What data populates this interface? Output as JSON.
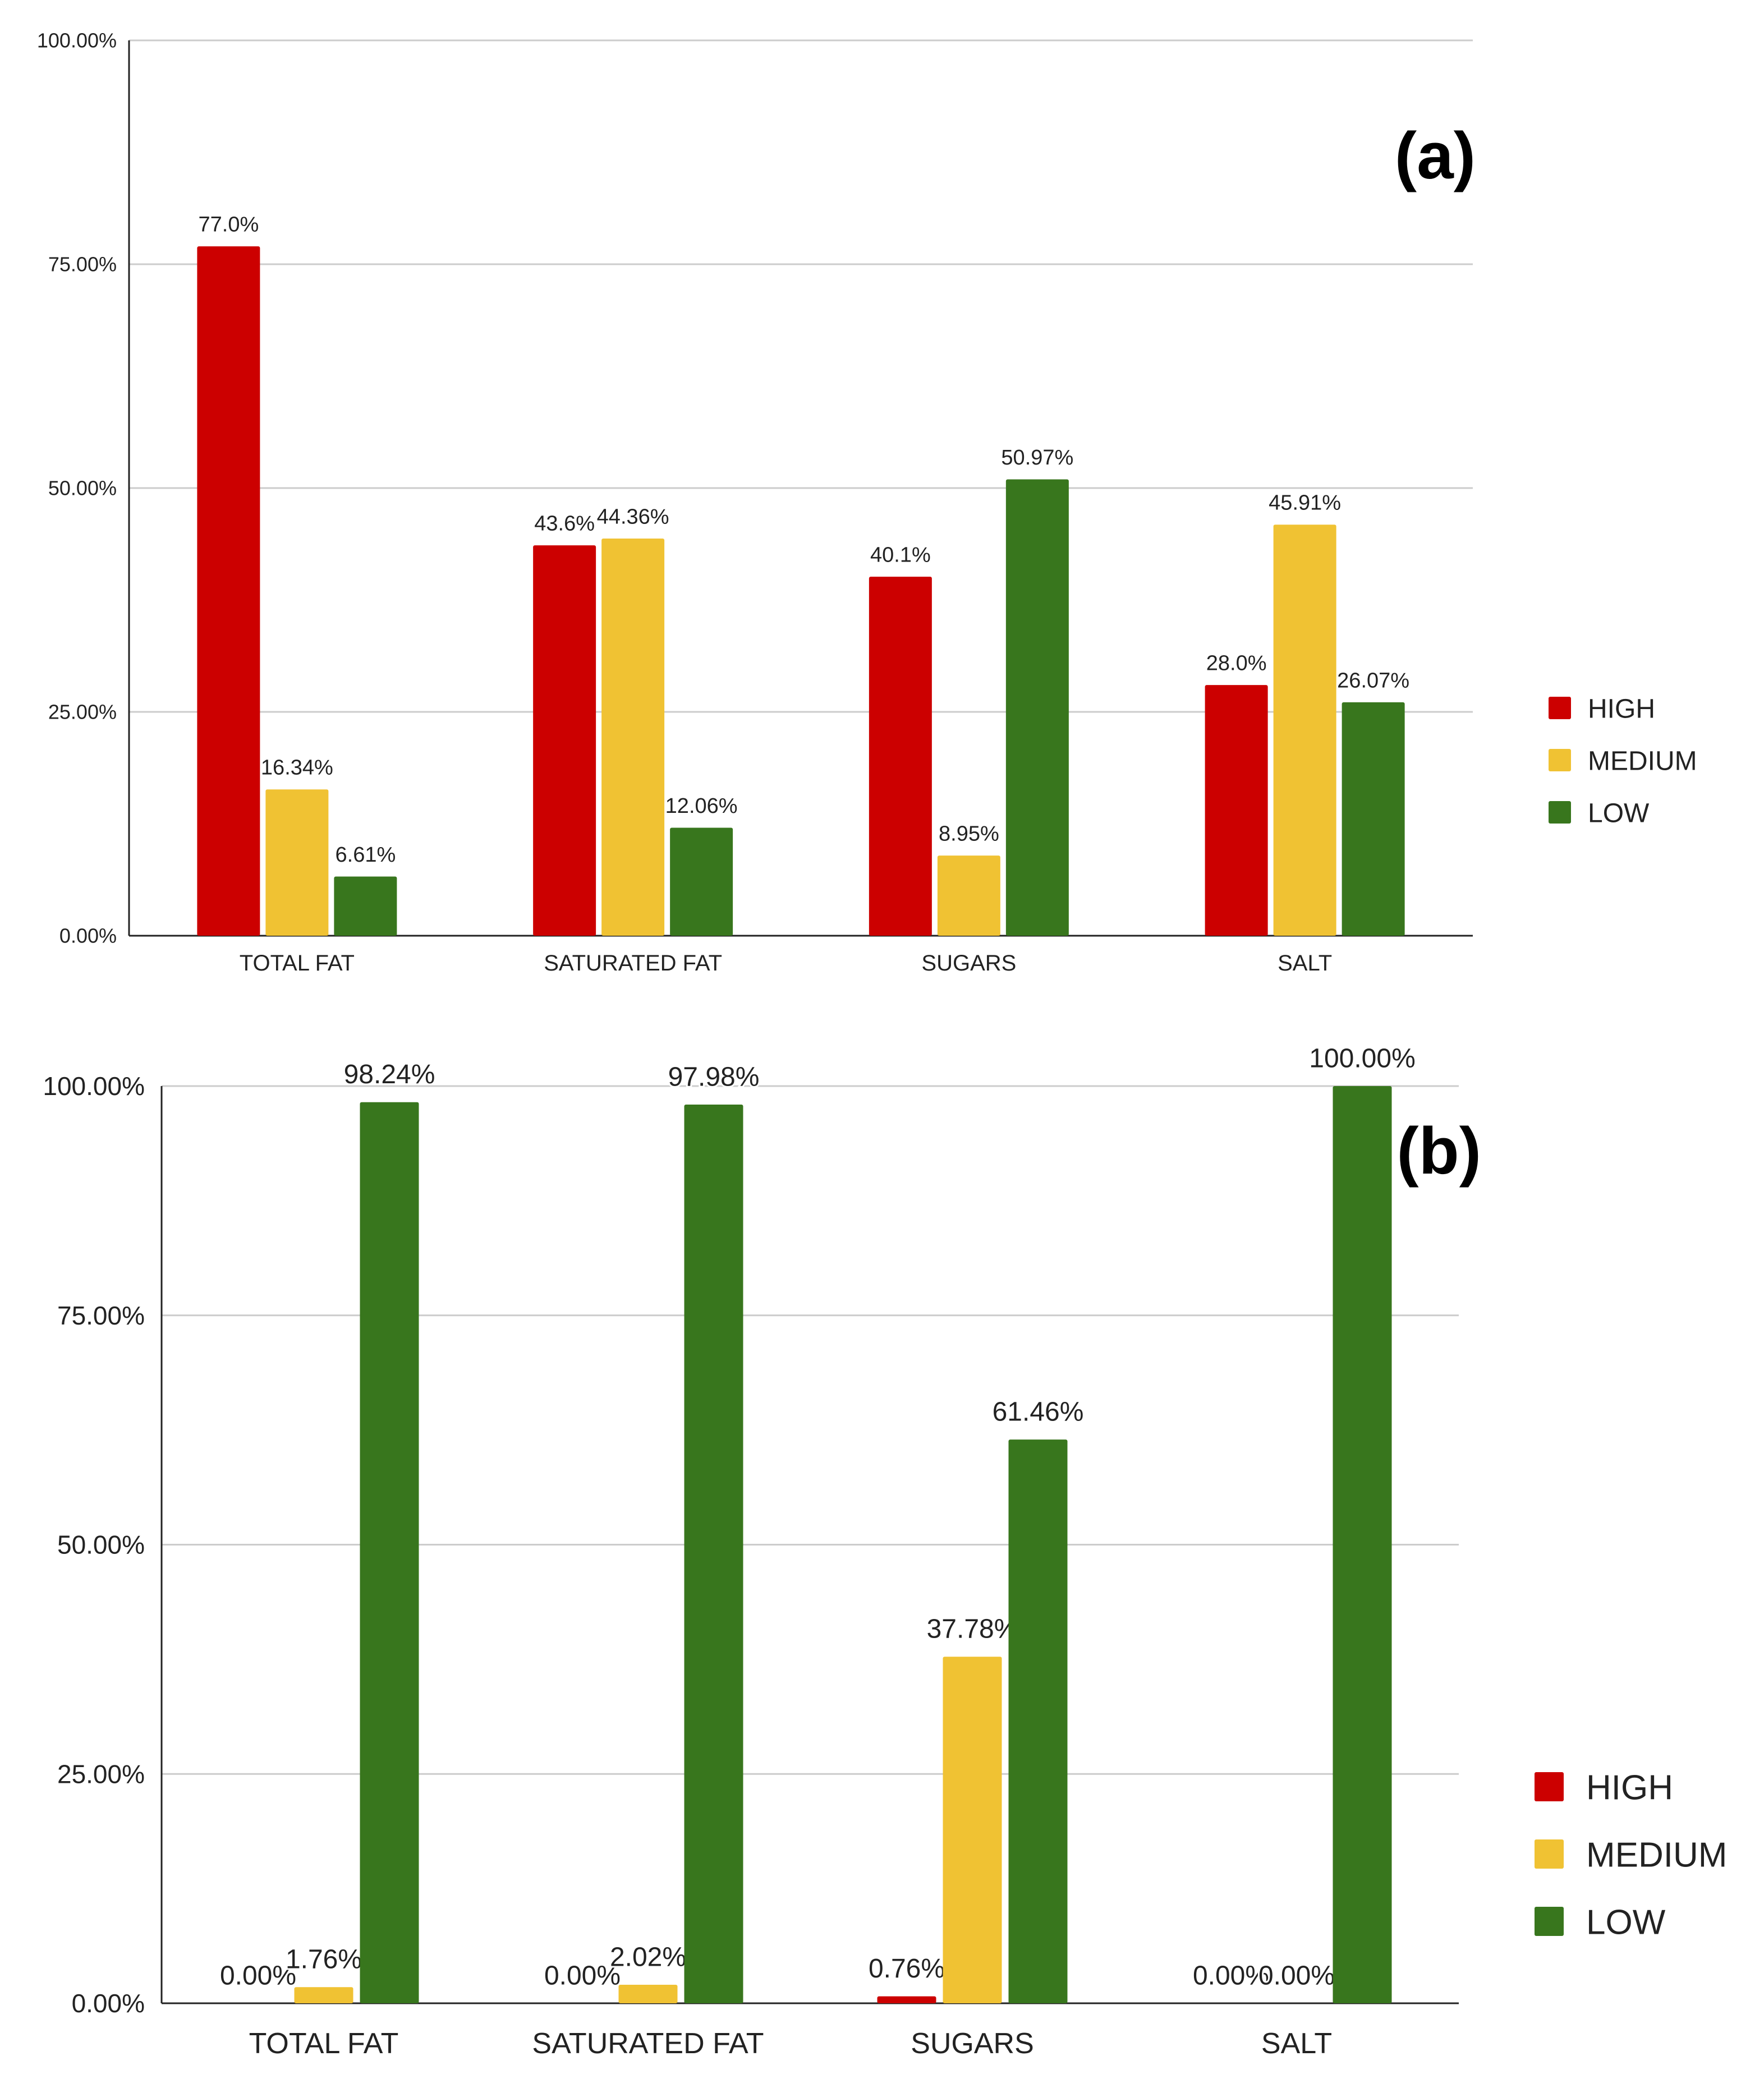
{
  "colors": {
    "high": "#cc0000",
    "medium": "#f0c233",
    "low": "#38761d",
    "grid": "#cccccc",
    "axis": "#222222",
    "text": "#222222"
  },
  "chart_data": [
    {
      "type": "bar",
      "panel_label": "(a)",
      "categories": [
        "TOTAL FAT",
        "SATURATED FAT",
        "SUGARS",
        "SALT"
      ],
      "series": [
        {
          "name": "HIGH",
          "values": [
            77.0,
            43.6,
            40.1,
            28.0
          ],
          "labels": [
            "77.0%",
            "43.6%",
            "40.1%",
            "28.0%"
          ]
        },
        {
          "name": "MEDIUM",
          "values": [
            16.34,
            44.36,
            8.95,
            45.91
          ],
          "labels": [
            "16.34%",
            "44.36%",
            "8.95%",
            "45.91%"
          ]
        },
        {
          "name": "LOW",
          "values": [
            6.61,
            12.06,
            50.97,
            26.07
          ],
          "labels": [
            "6.61%",
            "12.06%",
            "50.97%",
            "26.07%"
          ]
        }
      ],
      "yticks": [
        "0.00%",
        "25.00%",
        "50.00%",
        "75.00%",
        "100.00%"
      ],
      "ylim": [
        0,
        100
      ],
      "grid": true,
      "legend": "right"
    },
    {
      "type": "bar",
      "panel_label": "(b)",
      "categories": [
        "TOTAL FAT",
        "SATURATED FAT",
        "SUGARS",
        "SALT"
      ],
      "series": [
        {
          "name": "HIGH",
          "values": [
            0.0,
            0.0,
            0.76,
            0.0
          ],
          "labels": [
            "0.00%",
            "0.00%",
            "0.76%",
            "0.00%"
          ]
        },
        {
          "name": "MEDIUM",
          "values": [
            1.76,
            2.02,
            37.78,
            0.0
          ],
          "labels": [
            "1.76%",
            "2.02%",
            "37.78%",
            "0.00%"
          ]
        },
        {
          "name": "LOW",
          "values": [
            98.24,
            97.98,
            61.46,
            100.0
          ],
          "labels": [
            "98.24%",
            "97.98%",
            "61.46%",
            "100.00%"
          ]
        }
      ],
      "yticks": [
        "0.00%",
        "25.00%",
        "50.00%",
        "75.00%",
        "100.00%"
      ],
      "ylim": [
        0,
        100
      ],
      "grid": true,
      "legend": "right"
    }
  ]
}
